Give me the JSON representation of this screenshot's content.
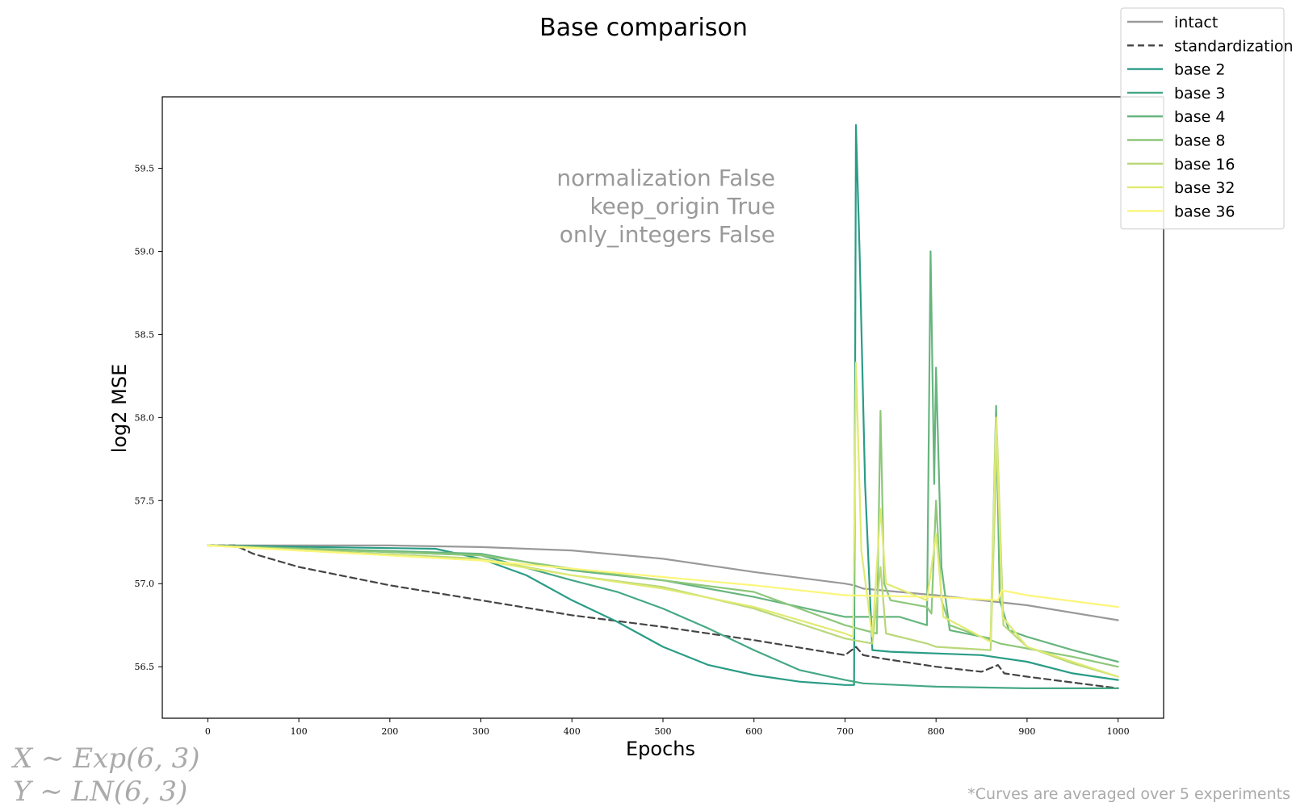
{
  "chart_data": {
    "type": "line",
    "title": "Base comparison",
    "xlabel": "Epochs",
    "ylabel": "log2 MSE",
    "xlim": [
      -50,
      1050
    ],
    "ylim": [
      56.19,
      59.93
    ],
    "xticks": [
      0,
      100,
      200,
      300,
      400,
      500,
      600,
      700,
      800,
      900,
      1000
    ],
    "yticks": [
      56.5,
      57.0,
      57.5,
      58.0,
      58.5,
      59.0,
      59.5
    ],
    "grid": false,
    "legend_position": "top-right",
    "annotation_lines": [
      "normalization False",
      "keep_origin True",
      "only_integers False"
    ],
    "distribution_lines": [
      "X ∼ Exp(6, 3)",
      "Y ∼ LN(6, 3)"
    ],
    "footnote": "*Curves are averaged over 5 experiments",
    "series": [
      {
        "name": "intact",
        "color": "#999999",
        "style": "solid",
        "points": [
          [
            0,
            57.23
          ],
          [
            100,
            57.23
          ],
          [
            200,
            57.23
          ],
          [
            300,
            57.22
          ],
          [
            400,
            57.2
          ],
          [
            500,
            57.15
          ],
          [
            600,
            57.07
          ],
          [
            700,
            57.0
          ],
          [
            710,
            56.99
          ],
          [
            720,
            56.97
          ],
          [
            740,
            56.96
          ],
          [
            800,
            56.93
          ],
          [
            900,
            56.87
          ],
          [
            1000,
            56.78
          ]
        ]
      },
      {
        "name": "standardization",
        "color": "#444444",
        "style": "dashed",
        "points": [
          [
            0,
            57.23
          ],
          [
            30,
            57.23
          ],
          [
            50,
            57.18
          ],
          [
            100,
            57.1
          ],
          [
            200,
            56.99
          ],
          [
            300,
            56.9
          ],
          [
            400,
            56.81
          ],
          [
            500,
            56.74
          ],
          [
            600,
            56.66
          ],
          [
            700,
            56.57
          ],
          [
            712,
            56.62
          ],
          [
            720,
            56.57
          ],
          [
            740,
            56.55
          ],
          [
            800,
            56.5
          ],
          [
            850,
            56.47
          ],
          [
            868,
            56.51
          ],
          [
            875,
            56.46
          ],
          [
            900,
            56.44
          ],
          [
            1000,
            56.37
          ]
        ]
      },
      {
        "name": "base 2",
        "color": "#2a9c86",
        "style": "solid",
        "points": [
          [
            0,
            57.23
          ],
          [
            250,
            57.21
          ],
          [
            300,
            57.15
          ],
          [
            350,
            57.05
          ],
          [
            400,
            56.9
          ],
          [
            450,
            56.77
          ],
          [
            500,
            56.62
          ],
          [
            550,
            56.51
          ],
          [
            600,
            56.45
          ],
          [
            650,
            56.41
          ],
          [
            700,
            56.39
          ],
          [
            710,
            56.39
          ],
          [
            712,
            59.76
          ],
          [
            716,
            59.0
          ],
          [
            722,
            57.6
          ],
          [
            730,
            56.6
          ],
          [
            750,
            56.59
          ],
          [
            800,
            56.58
          ],
          [
            850,
            56.57
          ],
          [
            900,
            56.53
          ],
          [
            950,
            56.46
          ],
          [
            1000,
            56.42
          ]
        ]
      },
      {
        "name": "base 3",
        "color": "#45a884",
        "style": "solid",
        "points": [
          [
            0,
            57.23
          ],
          [
            300,
            57.17
          ],
          [
            400,
            57.02
          ],
          [
            450,
            56.95
          ],
          [
            500,
            56.85
          ],
          [
            550,
            56.73
          ],
          [
            600,
            56.6
          ],
          [
            650,
            56.48
          ],
          [
            700,
            56.42
          ],
          [
            720,
            56.4
          ],
          [
            800,
            56.38
          ],
          [
            900,
            56.37
          ],
          [
            1000,
            56.37
          ]
        ]
      },
      {
        "name": "base 4",
        "color": "#67b57e",
        "style": "solid",
        "points": [
          [
            0,
            57.23
          ],
          [
            300,
            57.18
          ],
          [
            400,
            57.08
          ],
          [
            500,
            57.02
          ],
          [
            600,
            56.92
          ],
          [
            700,
            56.8
          ],
          [
            760,
            56.8
          ],
          [
            790,
            56.75
          ],
          [
            794,
            59.0
          ],
          [
            798,
            57.6
          ],
          [
            800,
            58.3
          ],
          [
            806,
            57.1
          ],
          [
            815,
            56.72
          ],
          [
            860,
            56.67
          ],
          [
            866,
            58.07
          ],
          [
            870,
            56.9
          ],
          [
            880,
            56.72
          ],
          [
            900,
            56.68
          ],
          [
            950,
            56.6
          ],
          [
            1000,
            56.53
          ]
        ]
      },
      {
        "name": "base 8",
        "color": "#8dc77a",
        "style": "solid",
        "points": [
          [
            0,
            57.23
          ],
          [
            300,
            57.17
          ],
          [
            400,
            57.09
          ],
          [
            500,
            57.02
          ],
          [
            600,
            56.95
          ],
          [
            700,
            56.75
          ],
          [
            735,
            56.7
          ],
          [
            739,
            58.04
          ],
          [
            743,
            57.0
          ],
          [
            750,
            56.9
          ],
          [
            790,
            56.86
          ],
          [
            795,
            56.82
          ],
          [
            800,
            57.5
          ],
          [
            806,
            56.9
          ],
          [
            815,
            56.75
          ],
          [
            870,
            56.64
          ],
          [
            950,
            56.56
          ],
          [
            1000,
            56.5
          ]
        ]
      },
      {
        "name": "base 16",
        "color": "#b9d878",
        "style": "solid",
        "points": [
          [
            0,
            57.23
          ],
          [
            300,
            57.15
          ],
          [
            400,
            57.05
          ],
          [
            500,
            56.98
          ],
          [
            600,
            56.85
          ],
          [
            700,
            56.67
          ],
          [
            730,
            56.64
          ],
          [
            739,
            57.1
          ],
          [
            745,
            56.7
          ],
          [
            790,
            56.64
          ],
          [
            800,
            56.62
          ],
          [
            860,
            56.6
          ],
          [
            867,
            57.9
          ],
          [
            874,
            56.75
          ],
          [
            900,
            56.62
          ],
          [
            950,
            56.52
          ],
          [
            1000,
            56.44
          ]
        ]
      },
      {
        "name": "base 32",
        "color": "#e0ea72",
        "style": "solid",
        "points": [
          [
            0,
            57.23
          ],
          [
            300,
            57.14
          ],
          [
            400,
            57.05
          ],
          [
            500,
            56.97
          ],
          [
            600,
            56.86
          ],
          [
            700,
            56.7
          ],
          [
            709,
            56.68
          ],
          [
            712,
            58.33
          ],
          [
            718,
            57.2
          ],
          [
            730,
            56.68
          ],
          [
            739,
            57.45
          ],
          [
            745,
            57.0
          ],
          [
            790,
            56.9
          ],
          [
            800,
            57.3
          ],
          [
            808,
            56.8
          ],
          [
            860,
            56.65
          ],
          [
            866,
            58.0
          ],
          [
            873,
            56.8
          ],
          [
            900,
            56.62
          ],
          [
            1000,
            56.44
          ]
        ]
      },
      {
        "name": "base 36",
        "color": "#fbf67a",
        "style": "solid",
        "points": [
          [
            0,
            57.23
          ],
          [
            300,
            57.14
          ],
          [
            400,
            57.09
          ],
          [
            500,
            57.04
          ],
          [
            600,
            56.99
          ],
          [
            700,
            56.93
          ],
          [
            800,
            56.92
          ],
          [
            868,
            56.9
          ],
          [
            872,
            56.96
          ],
          [
            900,
            56.93
          ],
          [
            1000,
            56.86
          ]
        ]
      }
    ]
  }
}
